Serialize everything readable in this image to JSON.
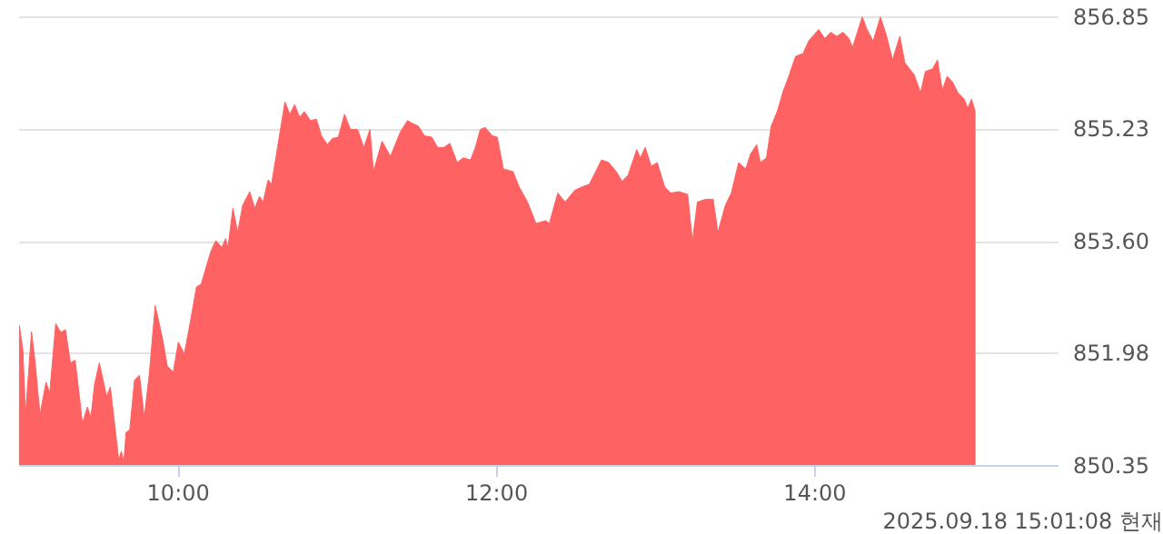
{
  "chart_data": {
    "type": "area",
    "x": [
      9.008,
      9.03,
      9.046,
      9.084,
      9.107,
      9.137,
      9.175,
      9.198,
      9.236,
      9.267,
      9.297,
      9.328,
      9.358,
      9.404,
      9.434,
      9.457,
      9.48,
      9.51,
      9.556,
      9.579,
      9.61,
      9.632,
      9.648,
      9.663,
      9.678,
      9.701,
      9.731,
      9.762,
      9.792,
      9.823,
      9.861,
      9.907,
      9.937,
      9.975,
      10.006,
      10.044,
      10.09,
      10.12,
      10.15,
      10.166,
      10.211,
      10.242,
      10.28,
      10.303,
      10.318,
      10.349,
      10.379,
      10.41,
      10.455,
      10.486,
      10.516,
      10.539,
      10.57,
      10.592,
      10.623,
      10.676,
      10.707,
      10.737,
      10.768,
      10.798,
      10.836,
      10.874,
      10.905,
      10.943,
      10.973,
      11.011,
      11.05,
      11.088,
      11.133,
      11.171,
      11.21,
      11.232,
      11.286,
      11.339,
      11.4,
      11.446,
      11.476,
      11.514,
      11.552,
      11.598,
      11.636,
      11.674,
      11.712,
      11.758,
      11.796,
      11.842,
      11.872,
      11.903,
      11.933,
      11.979,
      12.01,
      12.048,
      12.109,
      12.147,
      12.2,
      12.253,
      12.314,
      12.337,
      12.39,
      12.436,
      12.497,
      12.543,
      12.589,
      12.665,
      12.711,
      12.757,
      12.794,
      12.832,
      12.886,
      12.909,
      12.939,
      12.977,
      13.015,
      13.061,
      13.099,
      13.152,
      13.206,
      13.236,
      13.267,
      13.32,
      13.366,
      13.396,
      13.442,
      13.48,
      13.526,
      13.571,
      13.602,
      13.64,
      13.663,
      13.701,
      13.731,
      13.77,
      13.808,
      13.838,
      13.884,
      13.93,
      13.968,
      14.029,
      14.067,
      14.105,
      14.143,
      14.181,
      14.219,
      14.242,
      14.272,
      14.303,
      14.333,
      14.371,
      14.417,
      14.455,
      14.493,
      14.539,
      14.57,
      14.63,
      14.669,
      14.699,
      14.745,
      14.775,
      14.806,
      14.836,
      14.867,
      14.905,
      14.943,
      14.966,
      14.989,
      15.011
    ],
    "series": [
      {
        "color": "#ff6262",
        "values": [
          852.37,
          852.0,
          851.08,
          852.28,
          851.83,
          851.08,
          851.55,
          851.39,
          852.4,
          852.27,
          852.31,
          851.83,
          851.87,
          850.95,
          851.19,
          851.04,
          851.52,
          851.83,
          851.34,
          851.48,
          850.86,
          850.42,
          850.55,
          850.38,
          850.82,
          850.86,
          851.58,
          851.65,
          851.04,
          851.65,
          852.66,
          852.18,
          851.78,
          851.7,
          852.13,
          851.96,
          852.53,
          852.93,
          852.97,
          853.1,
          853.45,
          853.6,
          853.5,
          853.63,
          853.5,
          854.07,
          853.72,
          854.11,
          854.31,
          854.07,
          854.24,
          854.16,
          854.48,
          854.42,
          854.86,
          855.61,
          855.43,
          855.57,
          855.39,
          855.47,
          855.34,
          855.36,
          855.12,
          854.99,
          855.08,
          855.1,
          855.43,
          855.21,
          855.21,
          854.95,
          855.21,
          854.6,
          855.04,
          854.82,
          855.17,
          855.34,
          855.3,
          855.26,
          855.12,
          855.1,
          854.95,
          854.95,
          855.01,
          854.73,
          854.8,
          854.77,
          854.95,
          855.21,
          855.24,
          855.12,
          855.1,
          854.64,
          854.6,
          854.38,
          854.16,
          853.85,
          853.89,
          853.85,
          854.29,
          854.16,
          854.33,
          854.38,
          854.42,
          854.77,
          854.73,
          854.6,
          854.46,
          854.55,
          854.92,
          854.8,
          854.95,
          854.68,
          854.73,
          854.38,
          854.29,
          854.31,
          854.27,
          853.59,
          854.16,
          854.2,
          854.2,
          853.72,
          854.11,
          854.29,
          854.73,
          854.64,
          854.86,
          854.99,
          854.73,
          854.8,
          855.26,
          855.48,
          855.78,
          855.96,
          856.27,
          856.31,
          856.5,
          856.66,
          856.53,
          856.62,
          856.56,
          856.62,
          856.53,
          856.4,
          856.62,
          856.84,
          856.66,
          856.49,
          856.84,
          856.57,
          856.22,
          856.56,
          856.18,
          856.0,
          855.74,
          856.05,
          856.09,
          856.22,
          855.78,
          855.98,
          855.91,
          855.74,
          855.65,
          855.52,
          855.65,
          855.48
        ]
      }
    ],
    "xlim": [
      9,
      15.53
    ],
    "xticks": [
      {
        "value": 10,
        "label": "10:00"
      },
      {
        "value": 12,
        "label": "12:00"
      },
      {
        "value": 14,
        "label": "14:00"
      }
    ],
    "ylim": [
      850.35,
      856.85
    ],
    "yticks": [
      {
        "value": 850.35,
        "label": "850.35"
      },
      {
        "value": 851.98,
        "label": "851.98"
      },
      {
        "value": 853.6,
        "label": "853.60"
      },
      {
        "value": 855.23,
        "label": "855.23"
      },
      {
        "value": 856.85,
        "label": "856.85"
      }
    ],
    "grid": "y",
    "annotations": [
      "2025.09.18 15:01:08 현재"
    ]
  }
}
